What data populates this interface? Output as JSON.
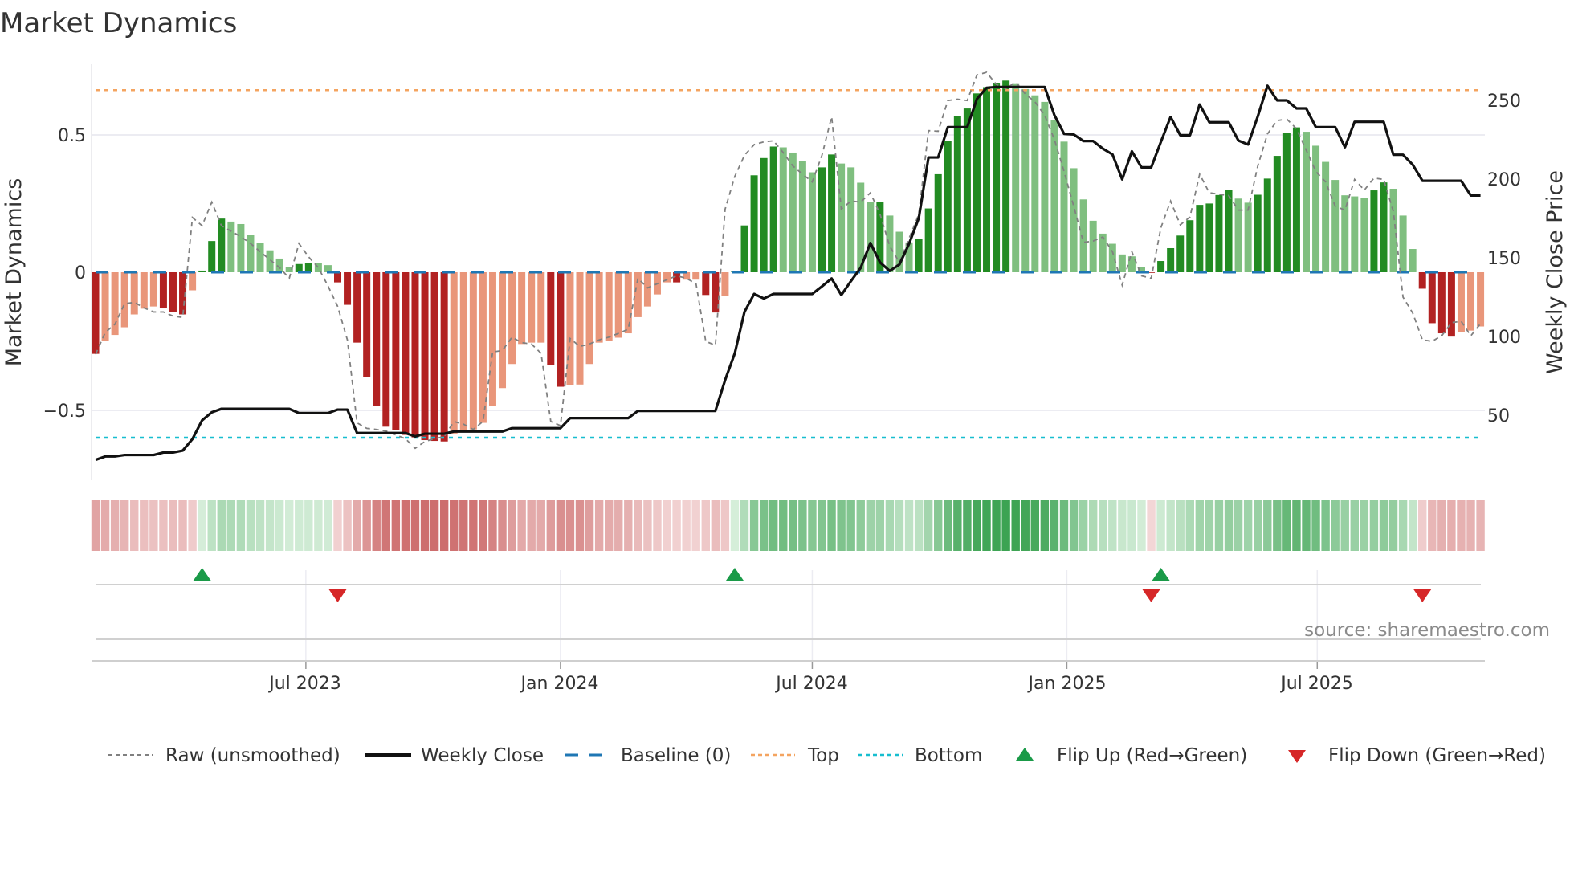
{
  "chart_data": {
    "type": "bar",
    "title": "Market Dynamics",
    "ylabel": "Market Dynamics",
    "y2label": "Weekly Close Price",
    "ylim": [
      -0.78,
      0.76
    ],
    "y2lim": [
      14,
      282
    ],
    "yticks": [
      "0.5",
      "0",
      "−0.5"
    ],
    "y2ticks": [
      "250",
      "200",
      "150",
      "100",
      "50"
    ],
    "xticks": [
      "Jul 2023",
      "Jan 2024",
      "Jul 2024",
      "Jan 2025",
      "Jul 2025"
    ],
    "start_date": "2023-01-30",
    "frequency": "weekly",
    "top_level": 0.665,
    "bottom_level": -0.604,
    "baseline": 0,
    "values": [
      -0.298,
      -0.252,
      -0.229,
      -0.201,
      -0.154,
      -0.133,
      -0.125,
      -0.132,
      -0.145,
      -0.154,
      -0.066,
      0.006,
      0.114,
      0.196,
      0.185,
      0.176,
      0.135,
      0.108,
      0.08,
      0.05,
      0.019,
      0.03,
      0.035,
      0.034,
      0.026,
      -0.037,
      -0.119,
      -0.257,
      -0.382,
      -0.488,
      -0.564,
      -0.576,
      -0.594,
      -0.603,
      -0.613,
      -0.616,
      -0.618,
      -0.589,
      -0.579,
      -0.574,
      -0.55,
      -0.488,
      -0.423,
      -0.335,
      -0.262,
      -0.257,
      -0.257,
      -0.34,
      -0.418,
      -0.411,
      -0.41,
      -0.335,
      -0.257,
      -0.252,
      -0.239,
      -0.223,
      -0.164,
      -0.125,
      -0.081,
      -0.037,
      -0.037,
      -0.027,
      -0.027,
      -0.083,
      -0.147,
      -0.086,
      0.003,
      0.171,
      0.354,
      0.417,
      0.459,
      0.456,
      0.437,
      0.407,
      0.365,
      0.383,
      0.43,
      0.397,
      0.383,
      0.327,
      0.258,
      0.258,
      0.207,
      0.148,
      0.109,
      0.121,
      0.233,
      0.358,
      0.48,
      0.571,
      0.598,
      0.653,
      0.676,
      0.692,
      0.7,
      0.69,
      0.669,
      0.646,
      0.622,
      0.557,
      0.477,
      0.38,
      0.266,
      0.188,
      0.141,
      0.104,
      0.065,
      0.058,
      0.02,
      -0.002,
      0.041,
      0.088,
      0.134,
      0.19,
      0.246,
      0.251,
      0.282,
      0.302,
      0.269,
      0.254,
      0.283,
      0.342,
      0.425,
      0.508,
      0.529,
      0.513,
      0.462,
      0.403,
      0.337,
      0.281,
      0.277,
      0.271,
      0.299,
      0.328,
      0.305,
      0.207,
      0.085,
      -0.06,
      -0.186,
      -0.223,
      -0.235,
      -0.218,
      -0.213,
      -0.198
    ],
    "strong": [
      1,
      0,
      0,
      0,
      0,
      0,
      0,
      1,
      1,
      1,
      0,
      1,
      1,
      1,
      0,
      0,
      0,
      0,
      0,
      0,
      0,
      1,
      1,
      0,
      0,
      1,
      1,
      1,
      1,
      1,
      1,
      1,
      1,
      1,
      1,
      1,
      1,
      0,
      0,
      0,
      0,
      0,
      0,
      0,
      0,
      0,
      0,
      1,
      1,
      0,
      0,
      0,
      0,
      0,
      0,
      0,
      0,
      0,
      0,
      0,
      1,
      0,
      0,
      1,
      1,
      0,
      1,
      1,
      1,
      1,
      1,
      0,
      0,
      0,
      0,
      1,
      1,
      0,
      0,
      0,
      0,
      1,
      0,
      0,
      0,
      1,
      1,
      1,
      1,
      1,
      1,
      1,
      1,
      1,
      1,
      0,
      0,
      0,
      0,
      0,
      0,
      0,
      0,
      0,
      0,
      0,
      0,
      0,
      0,
      1,
      1,
      1,
      1,
      1,
      1,
      1,
      1,
      1,
      0,
      0,
      1,
      1,
      1,
      1,
      1,
      0,
      0,
      0,
      0,
      0,
      0,
      0,
      1,
      1,
      0,
      0,
      0,
      1,
      1,
      1,
      1,
      0,
      0,
      0
    ],
    "raw": [
      -0.3,
      -0.22,
      -0.19,
      -0.115,
      -0.11,
      -0.13,
      -0.145,
      -0.145,
      -0.16,
      -0.165,
      0.2,
      0.17,
      0.256,
      0.17,
      0.15,
      0.13,
      0.105,
      0.075,
      0.046,
      0.017,
      -0.022,
      0.105,
      0.056,
      0.017,
      -0.05,
      -0.125,
      -0.247,
      -0.55,
      -0.57,
      -0.574,
      -0.58,
      -0.594,
      -0.608,
      -0.643,
      -0.618,
      -0.608,
      -0.6,
      -0.545,
      -0.555,
      -0.574,
      -0.545,
      -0.291,
      -0.286,
      -0.237,
      -0.257,
      -0.262,
      -0.296,
      -0.545,
      -0.56,
      -0.242,
      -0.271,
      -0.262,
      -0.247,
      -0.237,
      -0.223,
      -0.208,
      -0.022,
      -0.057,
      -0.042,
      -0.027,
      -0.013,
      -0.022,
      -0.042,
      -0.252,
      -0.267,
      0.23,
      0.35,
      0.427,
      0.466,
      0.476,
      0.48,
      0.437,
      0.388,
      0.358,
      0.33,
      0.427,
      0.568,
      0.231,
      0.26,
      0.256,
      0.29,
      0.212,
      0.095,
      0.036,
      0.124,
      0.212,
      0.517,
      0.515,
      0.627,
      0.632,
      0.627,
      0.72,
      0.73,
      0.686,
      0.67,
      0.695,
      0.651,
      0.622,
      0.573,
      0.485,
      0.368,
      0.241,
      0.109,
      0.114,
      0.129,
      0.075,
      -0.047,
      0.075,
      -0.013,
      -0.022,
      0.163,
      0.26,
      0.173,
      0.202,
      0.358,
      0.29,
      0.285,
      0.28,
      0.227,
      0.227,
      0.388,
      0.505,
      0.554,
      0.559,
      0.524,
      0.446,
      0.368,
      0.33,
      0.241,
      0.227,
      0.339,
      0.3,
      0.344,
      0.339,
      0.222,
      -0.091,
      -0.149,
      -0.247,
      -0.252,
      -0.232,
      -0.184,
      -0.179,
      -0.232,
      -0.188
    ],
    "close": [
      21.9,
      24.1,
      24.1,
      25,
      25,
      25,
      25,
      26.6,
      26.6,
      27.8,
      35.1,
      47,
      52.1,
      54.3,
      54.3,
      54.3,
      54.3,
      54.3,
      54.3,
      54.3,
      54.3,
      51.6,
      51.6,
      51.6,
      51.6,
      53.8,
      53.8,
      38.9,
      38.9,
      38.9,
      38.9,
      38.9,
      38.9,
      36.8,
      38.5,
      38.5,
      38.5,
      39.9,
      39.9,
      39.9,
      39.9,
      39.9,
      39.9,
      42,
      42,
      42,
      42,
      42,
      42,
      48.4,
      48.4,
      48.4,
      48.4,
      48.4,
      48.4,
      48.4,
      53,
      53,
      53,
      53,
      53,
      53,
      53,
      53,
      53,
      72.5,
      89.5,
      115.8,
      127.2,
      124.3,
      127.2,
      127.2,
      127.2,
      127.2,
      127.2,
      132,
      137,
      126.5,
      135.4,
      143.8,
      159.5,
      147.2,
      141.8,
      145.9,
      159.1,
      175.3,
      213.8,
      213.8,
      233,
      233,
      233,
      250.9,
      258,
      258.5,
      258.5,
      258.5,
      258.5,
      258.5,
      258.5,
      240.7,
      228.8,
      228.4,
      224.2,
      224.2,
      219.4,
      215.7,
      199.9,
      217.7,
      207.5,
      207.5,
      223.7,
      239.5,
      227.9,
      227.9,
      247.4,
      236.1,
      236.1,
      236.1,
      224.5,
      222,
      239.8,
      259.3,
      250,
      250,
      244.9,
      244.9,
      233,
      233,
      233,
      220.3,
      236.4,
      236.4,
      236.4,
      236.4,
      215.5,
      215.5,
      209.2,
      199,
      199,
      199,
      199,
      199,
      189.7,
      189.7
    ],
    "legend": {
      "placement": "bottom",
      "raw": "Raw (unsmoothed)",
      "close": "Weekly Close",
      "baseline": "Baseline (0)",
      "top": "Top",
      "bottom": "Bottom",
      "flip_up": "Flip Up (Red→Green)",
      "flip_down": "Flip Down (Green→Red)"
    },
    "source": "source: sharemaestro.com",
    "colors": {
      "strong_pos": "#228b22",
      "weak_pos": "#7fbf7f",
      "strong_neg": "#b22222",
      "weak_neg": "#e9967a",
      "raw": "#808080",
      "close": "#111111",
      "baseline": "#1f77b4",
      "top": "#f4a460",
      "bottom": "#17becf",
      "flip_up": "#1a9a48",
      "flip_down": "#d62728"
    }
  }
}
